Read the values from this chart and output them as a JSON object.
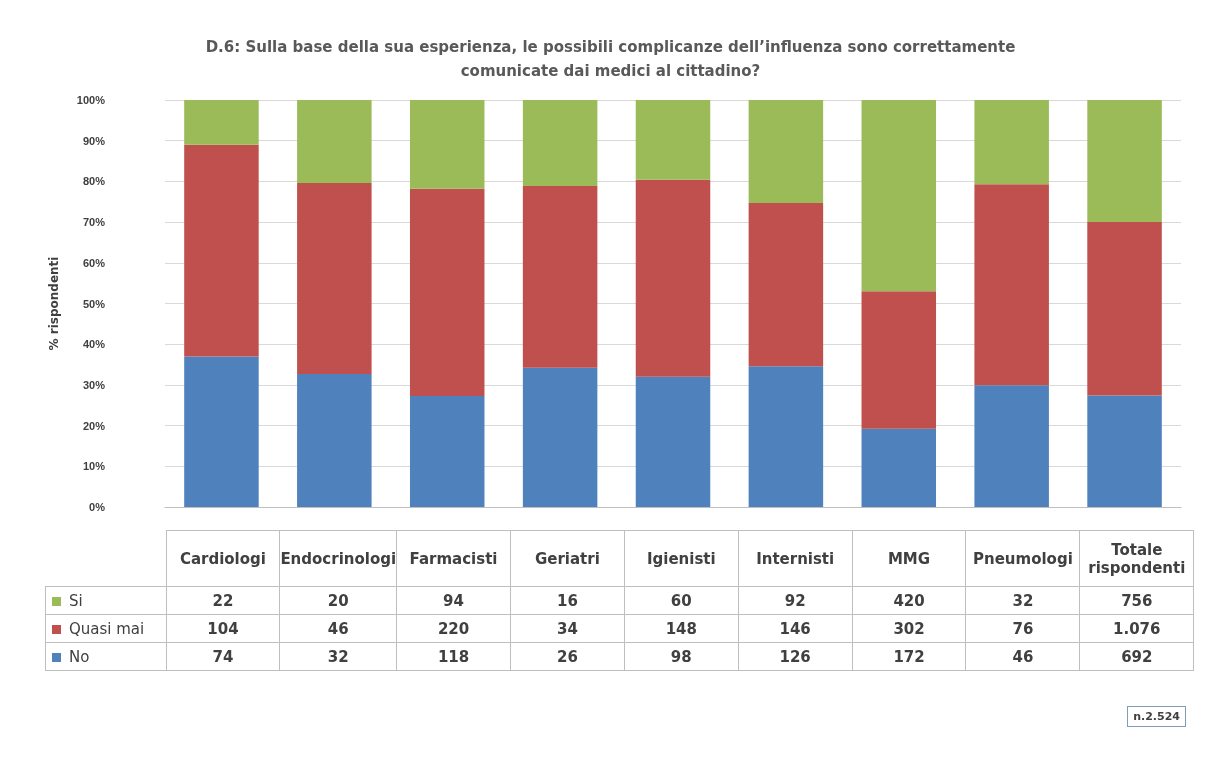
{
  "chart_data": [
    {
      "type": "bar",
      "title": "D.6: Sulla base della sua esperienza, le possibili complicanze dell’influenza sono correttamente\ncomunicate dai medici al cittadino?",
      "ylabel": "% rispondenti",
      "categories": [
        null,
        null,
        null,
        null,
        null,
        null,
        null,
        null,
        null
      ],
      "stacked": true,
      "series": [
        {
          "color": "#4f81bd",
          "values": [
            37.0,
            32.7,
            27.3,
            34.2,
            32.0,
            34.6,
            19.2,
            29.9,
            27.4
          ]
        },
        {
          "color": "#c0504d",
          "values": [
            52.0,
            46.9,
            50.9,
            44.7,
            48.4,
            40.1,
            33.8,
            49.4,
            42.6
          ]
        },
        {
          "color": "#9bbb59",
          "values": [
            11.0,
            20.4,
            21.8,
            21.1,
            19.6,
            25.3,
            47.0,
            20.8,
            30.0
          ]
        }
      ],
      "ylim": [
        0,
        100
      ],
      "yticks": [
        {
          "value": 0,
          "label": "0%"
        },
        {
          "value": 10,
          "label": "10%"
        },
        {
          "value": 20,
          "label": "20%"
        },
        {
          "value": 30,
          "label": "30%"
        },
        {
          "value": 40,
          "label": "40%"
        },
        {
          "value": 50,
          "label": "50%"
        },
        {
          "value": 60,
          "label": "60%"
        },
        {
          "value": 70,
          "label": "70%"
        },
        {
          "value": 80,
          "label": "80%"
        },
        {
          "value": 90,
          "label": "90%"
        },
        {
          "value": 100,
          "label": "100%"
        }
      ],
      "grid": "y",
      "annotations": [
        "n.2.524"
      ]
    },
    {
      "type": "other",
      "categories": [
        "Cardiologi",
        "Endocrinologi",
        "Farmacisti",
        "Geriatri",
        "Igienisti",
        "Internisti",
        "MMG",
        "Pneumologi",
        "Totale rispondenti"
      ],
      "series": [
        {
          "name": "Si",
          "color": "#9bbb59",
          "values": [
            22,
            20,
            94,
            16,
            60,
            92,
            420,
            32,
            756
          ]
        },
        {
          "name": "Quasi mai",
          "color": "#c0504d",
          "values": [
            104,
            46,
            220,
            34,
            148,
            146,
            302,
            76,
            1076
          ],
          "value_labels": [
            "104",
            "46",
            "220",
            "34",
            "148",
            "146",
            "302",
            "76",
            "1.076"
          ]
        },
        {
          "name": "No",
          "color": "#4f81bd",
          "values": [
            74,
            32,
            118,
            26,
            98,
            126,
            172,
            46,
            692
          ]
        }
      ],
      "data_labels": true,
      "legend": "left"
    }
  ]
}
